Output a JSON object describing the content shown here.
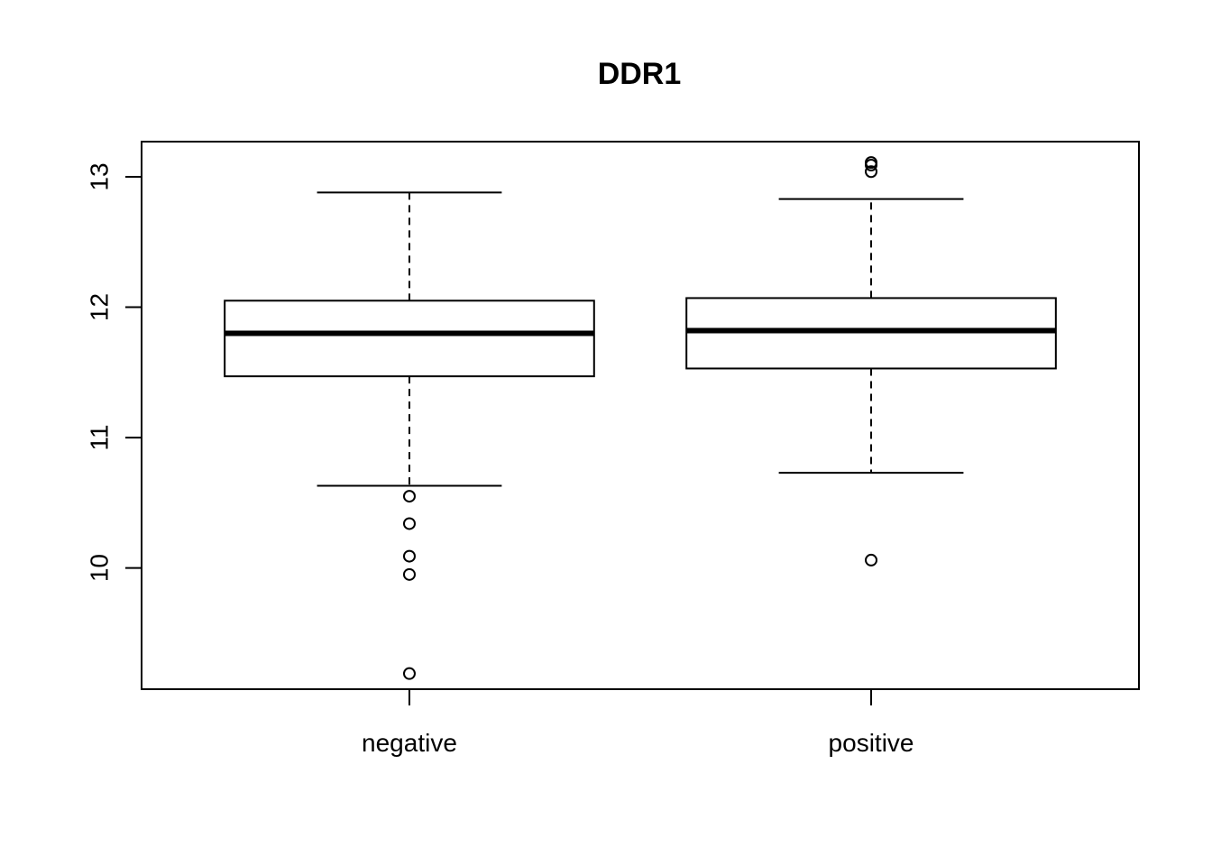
{
  "chart_data": {
    "type": "boxplot",
    "title": "DDR1",
    "xlabel": "",
    "ylabel": "",
    "ylim": [
      9.07,
      13.27
    ],
    "yticks": [
      10,
      11,
      12,
      13
    ],
    "ytick_labels": [
      "10",
      "11",
      "12",
      "13"
    ],
    "categories": [
      "negative",
      "positive"
    ],
    "boxes": [
      {
        "category": "negative",
        "whisker_low": 10.63,
        "q1": 11.47,
        "median": 11.8,
        "q3": 12.05,
        "whisker_high": 12.88,
        "outliers": [
          10.55,
          10.34,
          10.09,
          9.95,
          9.19
        ]
      },
      {
        "category": "positive",
        "whisker_low": 10.73,
        "q1": 11.53,
        "median": 11.82,
        "q3": 12.07,
        "whisker_high": 12.83,
        "outliers": [
          13.11,
          13.09,
          13.04,
          10.06
        ]
      }
    ],
    "grid": false,
    "legend": "none"
  }
}
